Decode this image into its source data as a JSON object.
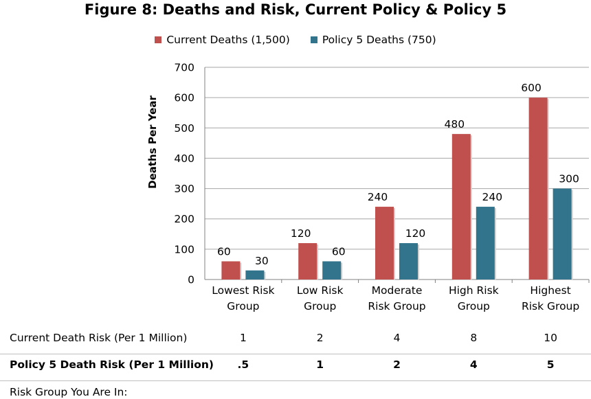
{
  "chart_data": {
    "type": "bar",
    "title": "Figure 8: Deaths and Risk, Current Policy & Policy 5",
    "ylabel": "Deaths Per Year",
    "xlabel": "",
    "ylim": [
      0,
      700
    ],
    "yticks": [
      0,
      100,
      200,
      300,
      400,
      500,
      600,
      700
    ],
    "grid": "horizontal",
    "legend_position": "top",
    "categories": [
      [
        "Lowest Risk",
        "Group"
      ],
      [
        "Low Risk",
        "Group"
      ],
      [
        "Moderate",
        "Risk Group"
      ],
      [
        "High Risk",
        "Group"
      ],
      [
        "Highest",
        "Risk Group"
      ]
    ],
    "series": [
      {
        "name": "Current Deaths (1,500)",
        "color": "#c0504d",
        "values": [
          60,
          120,
          240,
          480,
          600
        ]
      },
      {
        "name": "Policy 5 Deaths (750)",
        "color": "#31748c",
        "values": [
          30,
          60,
          120,
          240,
          300
        ]
      }
    ]
  },
  "table": {
    "current_label": "Current Death Risk (Per 1 Million)",
    "current_values": [
      "1",
      "2",
      "4",
      "8",
      "10"
    ],
    "policy_label": "Policy 5 Death Risk (Per 1 Million)",
    "policy_values": [
      ".5",
      "1",
      "2",
      "4",
      "5"
    ],
    "you_label": "Risk Group You Are In:"
  }
}
